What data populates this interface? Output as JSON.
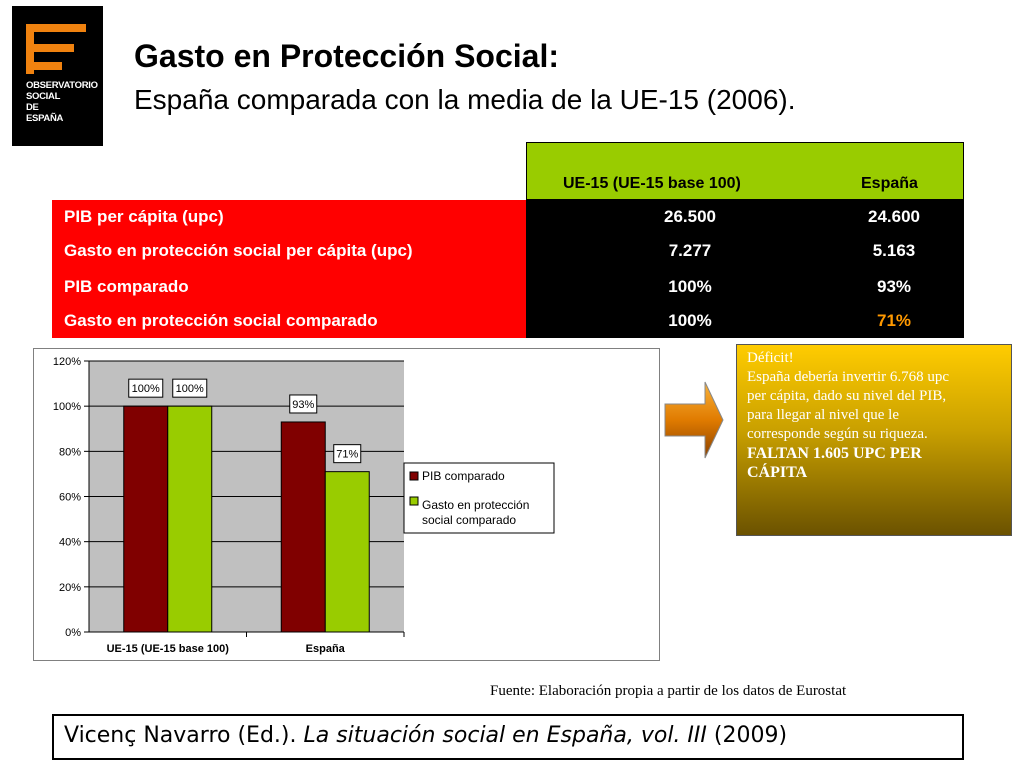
{
  "logo": {
    "lines": [
      "OBSERVATORIO",
      "SOCIAL",
      "DE",
      "ESPAÑA"
    ],
    "accent": "#f0820f"
  },
  "title": "Gasto en Protección Social:",
  "subtitle": "España comparada con la media de la UE-15 (2006).",
  "table": {
    "headers": [
      "UE-15 (UE-15 base 100)",
      "España"
    ],
    "rows": [
      {
        "label": "PIB per cápita (upc)",
        "ue15": "26.500",
        "espana": "24.600"
      },
      {
        "label": "Gasto en protección social per cápita (upc)",
        "ue15": "7.277",
        "espana": "5.163"
      },
      {
        "label": "PIB comparado",
        "ue15": "100%",
        "espana": "93%"
      },
      {
        "label": "Gasto en protección social comparado",
        "ue15": "100%",
        "espana": "71%"
      }
    ],
    "highlight_color": "#ff9900"
  },
  "chart_data": {
    "type": "bar",
    "categories": [
      "UE-15 (UE-15 base 100)",
      "España"
    ],
    "series": [
      {
        "name": "PIB comparado",
        "values": [
          100,
          93
        ],
        "labels": [
          "100%",
          "93%"
        ],
        "color": "#800000"
      },
      {
        "name": "Gasto en protección social comparado",
        "values": [
          100,
          71
        ],
        "labels": [
          "100%",
          "71%"
        ],
        "color": "#99cc00"
      }
    ],
    "yticks": [
      "0%",
      "20%",
      "40%",
      "60%",
      "80%",
      "100%",
      "120%"
    ],
    "ylim": [
      0,
      120
    ],
    "legend": [
      "PIB comparado",
      "Gasto en protección",
      "social comparado"
    ],
    "legend_position": "right"
  },
  "note": {
    "lines": [
      "Déficit!",
      "España debería invertir 6.768 upc",
      "per cápita, dado su nivel del PIB,",
      "para llegar al nivel que le",
      "corresponde según su riqueza."
    ],
    "bold_lines": [
      "FALTAN 1.605 UPC PER",
      "CÁPITA"
    ]
  },
  "source": "Fuente: Elaboración propia a partir de los datos de  Eurostat",
  "citation": {
    "author": "Vicenç Navarro (Ed.). ",
    "book": "La situación social en España, vol. III",
    "year": " (2009)"
  }
}
